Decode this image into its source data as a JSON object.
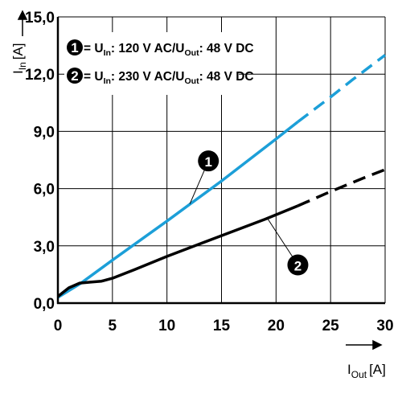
{
  "chart_data": {
    "type": "line",
    "title": "",
    "xlabel": {
      "main": "I",
      "sub": "Out",
      "unit": "[A]"
    },
    "ylabel": {
      "main": "I",
      "sub": "In",
      "unit": "[A]"
    },
    "xlim": [
      0,
      30
    ],
    "ylim": [
      0,
      15
    ],
    "x_ticks": [
      0,
      5,
      10,
      15,
      20,
      25,
      30
    ],
    "x_tick_labels": [
      "0",
      "5",
      "10",
      "15",
      "20",
      "25",
      "30"
    ],
    "y_ticks": [
      0,
      3,
      6,
      9,
      12,
      15
    ],
    "y_tick_labels": [
      "0,0",
      "3,0",
      "6,0",
      "9,0",
      "12,0",
      "15,0"
    ],
    "grid": true,
    "legend_position": "top-left",
    "series": [
      {
        "id": "1",
        "color": "#1c9fd8",
        "legend": {
          "eq": "= U",
          "sub1": "In",
          "mid": ": 120 V AC/U",
          "sub2": "Out",
          "end": ": 48 V DC"
        },
        "solid_until_x": 22,
        "x": [
          0,
          2,
          5,
          10,
          15,
          20,
          22,
          25,
          27,
          30
        ],
        "y": [
          0.3,
          1.0,
          2.25,
          4.3,
          6.4,
          8.6,
          9.5,
          10.8,
          11.7,
          13.0
        ]
      },
      {
        "id": "2",
        "color": "#000000",
        "legend": {
          "eq": "= U",
          "sub1": "In",
          "mid": ": 230 V AC/U",
          "sub2": "Out",
          "end": ": 48 V DC"
        },
        "solid_until_x": 22,
        "x": [
          0,
          1,
          2,
          3,
          4,
          5,
          7,
          10,
          13,
          16,
          19,
          22,
          25,
          28,
          30
        ],
        "y": [
          0.35,
          0.8,
          1.05,
          1.1,
          1.15,
          1.3,
          1.75,
          2.45,
          3.1,
          3.75,
          4.4,
          5.1,
          5.85,
          6.55,
          7.0
        ]
      }
    ],
    "callouts": [
      {
        "label": "1",
        "series": "1",
        "badge_xy": [
          13.8,
          7.45
        ],
        "target_xy": [
          12.1,
          5.2
        ]
      },
      {
        "label": "2",
        "series": "2",
        "badge_xy": [
          22.0,
          2.0
        ],
        "target_xy": [
          19.2,
          4.45
        ]
      }
    ]
  }
}
